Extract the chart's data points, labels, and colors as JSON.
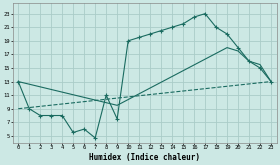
{
  "xlabel": "Humidex (Indice chaleur)",
  "bg_color": "#cce8e4",
  "grid_color": "#aaccc8",
  "line_color": "#1a6b60",
  "xlim": [
    -0.5,
    23.5
  ],
  "ylim": [
    4.0,
    24.5
  ],
  "xticks": [
    0,
    1,
    2,
    3,
    4,
    5,
    6,
    7,
    8,
    9,
    10,
    11,
    12,
    13,
    14,
    15,
    16,
    17,
    18,
    19,
    20,
    21,
    22,
    23
  ],
  "yticks": [
    5,
    7,
    9,
    11,
    13,
    15,
    17,
    19,
    21,
    23
  ],
  "line1_x": [
    0,
    1,
    2,
    3,
    4,
    5,
    6,
    7,
    8,
    9,
    10,
    11,
    12,
    13,
    14,
    15,
    16,
    17,
    18,
    19,
    20,
    21,
    22,
    23
  ],
  "line1_y": [
    13,
    9,
    8,
    8,
    8,
    5.5,
    6.0,
    4.7,
    11,
    7.5,
    19,
    19.5,
    20,
    20.5,
    21,
    21.5,
    22.5,
    23,
    21,
    20,
    18,
    16,
    15,
    13
  ],
  "line2_x": [
    0,
    23
  ],
  "line2_y": [
    9,
    13
  ],
  "line3_x": [
    0,
    9,
    19,
    20,
    21,
    22,
    23
  ],
  "line3_y": [
    13,
    9.5,
    18,
    17.5,
    16,
    15.5,
    13
  ]
}
